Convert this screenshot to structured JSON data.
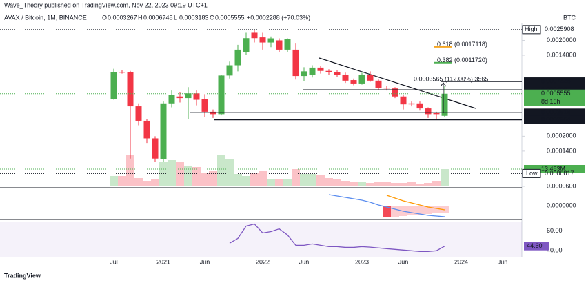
{
  "header": {
    "publisher": "Wave_Theory published on TradingView.com, Nov 22, 2023 09:19 UTC+1",
    "symbol": "AVAX / Bitcoin, 1M, BINANCE",
    "ohlc": [
      {
        "key": "O",
        "value": "0.0003267"
      },
      {
        "key": "H",
        "value": "0.0006748"
      },
      {
        "key": "L",
        "value": "0.0003183"
      },
      {
        "key": "C",
        "value": "0.0005555"
      }
    ],
    "change": "+0.0002288 (+70.03%)",
    "currency": "BTC"
  },
  "chart_data": [
    {
      "type": "candlestick",
      "scale": "log",
      "up_color": "#4caf50",
      "down_color": "#f23645",
      "categories": [
        "Jul",
        null,
        null,
        null,
        null,
        null,
        "2021",
        null,
        null,
        null,
        null,
        "Jun",
        null,
        null,
        null,
        null,
        null,
        null,
        "2022",
        null,
        null,
        null,
        null,
        "Jun",
        null,
        null,
        null,
        null,
        null,
        null,
        "2023",
        null,
        null,
        null,
        null,
        "Jun",
        null,
        null,
        null,
        null,
        null,
        null,
        "2024",
        null,
        null,
        null,
        null,
        "Jun"
      ],
      "open": [
        0.00049,
        0.00094,
        0.00093,
        0.00041,
        0.00029,
        0.00019,
        0.000115,
        0.00044,
        0.00052,
        0.0005,
        0.00056,
        0.00049,
        0.00036,
        0.00034,
        0.00086,
        0.0011,
        0.00152,
        0.0024,
        0.00215,
        0.0019,
        0.002,
        0.0016,
        0.0016,
        0.00085,
        0.00088,
        0.00104,
        0.00096,
        0.00094,
        0.00088,
        0.00077,
        0.00071,
        0.00088,
        0.00076,
        0.00064,
        0.00063,
        0.00052,
        0.00044,
        0.00044,
        0.00039,
        0.00035,
        0.0003267,
        null,
        null,
        null,
        null,
        null,
        null,
        null
      ],
      "high": [
        0.00101,
        0.00098,
        0.00096,
        0.00044,
        0.0003,
        0.0002,
        0.00046,
        0.0006,
        0.00058,
        0.00065,
        0.0006,
        0.00055,
        0.00038,
        0.00088,
        0.0012,
        0.0018,
        0.0024,
        0.0025908,
        0.0024,
        0.0022,
        0.0021,
        0.0021,
        0.00185,
        0.00105,
        0.0011,
        0.00108,
        0.001,
        0.00098,
        0.00092,
        0.0008,
        0.00092,
        0.00095,
        0.00078,
        0.00067,
        0.00065,
        0.00054,
        0.00046,
        0.00046,
        0.0004,
        0.00036,
        0.0006748,
        null,
        null,
        null,
        null,
        null,
        null,
        null
      ],
      "low": [
        0.00048,
        0.0009,
        0.000117,
        0.00026,
        0.00017,
        0.000108,
        0.000108,
        0.0004,
        0.00045,
        0.0003,
        0.00042,
        0.00032,
        0.00031,
        0.00033,
        0.0008,
        0.00095,
        0.0014,
        0.0019,
        0.0016,
        0.0017,
        0.0015,
        0.0015,
        0.00078,
        0.00075,
        0.00082,
        0.0009,
        0.00088,
        0.00083,
        0.00072,
        0.00068,
        0.00069,
        0.00074,
        0.00061,
        0.0006,
        0.0005,
        0.00038,
        0.00041,
        0.00037,
        0.00031,
        0.0003,
        0.0003183,
        null,
        null,
        null,
        null,
        null,
        null,
        null
      ],
      "close": [
        0.00093,
        0.00092,
        0.00041,
        0.00029,
        0.00019,
        0.000117,
        0.00044,
        0.00054,
        0.0005,
        0.00056,
        0.00048,
        0.00036,
        0.00034,
        0.00086,
        0.0011,
        0.0016,
        0.00211,
        0.00211,
        0.0019,
        0.0021,
        0.0016,
        0.00205,
        0.00085,
        0.00095,
        0.00104,
        0.00096,
        0.00093,
        0.00088,
        0.00076,
        0.00071,
        0.00088,
        0.00076,
        0.00064,
        0.00063,
        0.00052,
        0.00043,
        0.00043,
        0.00039,
        0.00034,
        0.00034,
        0.0005555,
        null,
        null,
        null,
        null,
        null,
        null,
        null
      ],
      "ylim": [
        6e-05,
        0.003
      ],
      "yticks": [
        {
          "value": 0.002,
          "label": "0.0020000"
        },
        {
          "value": 0.0014,
          "label": "0.0014000"
        },
        {
          "value": 0.0002,
          "label": "0.0002000"
        },
        {
          "value": 0.00014,
          "label": "0.0001400"
        },
        {
          "value": 6e-05,
          "label": "0.0000600"
        }
      ],
      "levels": [
        0.0007448,
        0.0006097,
        0.0003518,
        0.0002964
      ],
      "high_label": "High",
      "low_label": "Low",
      "all_time_low": 8.17e-05,
      "countdown": "8d 16h",
      "fib": [
        {
          "label": "0.618 (0.0017118)",
          "value": 0.0017118,
          "color": "#f5a623"
        },
        {
          "label": "0.382 (0.0011720)",
          "value": 0.001172,
          "color": "#4caf50"
        }
      ],
      "measure": "0.0003565 (112.00%) 3565",
      "volume": {
        "values": [
          8.08,
          8.08,
          24.23,
          6.46,
          4.31,
          5.39,
          18.85,
          20.46,
          18.85,
          16.16,
          15.08,
          10.77,
          11.85,
          24.23,
          21.54,
          9.69,
          8.08,
          10.77,
          11.85,
          5.39,
          5.39,
          5.39,
          13.46,
          9.69,
          9.69,
          8.62,
          6.46,
          5.39,
          4.31,
          3.23,
          3.23,
          2.69,
          3.23,
          3.23,
          2.69,
          2.69,
          3.23,
          2.15,
          2.69,
          4.31,
          13.463,
          null,
          null,
          null,
          null,
          null,
          null,
          null
        ],
        "value_labels": [
          null,
          null,
          null,
          null,
          null,
          null,
          null,
          null,
          null,
          null,
          null,
          null,
          null,
          null,
          null,
          null,
          null,
          null,
          null,
          null,
          null,
          null,
          null,
          null,
          null,
          null,
          null,
          null,
          null,
          null,
          null,
          null,
          null,
          null,
          null,
          null,
          null,
          null,
          null,
          null,
          "13.463M",
          null,
          null,
          null,
          null,
          null,
          null,
          null
        ]
      }
    },
    {
      "type": "macd",
      "ylim": [
        -0.00018,
        0.00016
      ],
      "yticks": [
        {
          "value": 0,
          "label": "0.0000000"
        }
      ],
      "macd": {
        "color": "#5b8def",
        "values": [
          null,
          null,
          null,
          null,
          null,
          null,
          null,
          null,
          null,
          null,
          null,
          null,
          null,
          null,
          null,
          null,
          null,
          null,
          null,
          null,
          null,
          null,
          null,
          null,
          null,
          null,
          0.00016,
          0.00014,
          0.00012,
          0.0001,
          8e-05,
          5e-05,
          1e-05,
          -2e-05,
          -5e-05,
          -8e-05,
          -0.0001,
          -0.00012,
          -0.00014,
          -0.00015,
          -0.00016,
          null,
          null,
          null,
          null,
          null,
          null,
          null
        ]
      },
      "signal": {
        "color": "#ff9800",
        "values": [
          null,
          null,
          null,
          null,
          null,
          null,
          null,
          null,
          null,
          null,
          null,
          null,
          null,
          null,
          null,
          null,
          null,
          null,
          null,
          null,
          null,
          null,
          null,
          null,
          null,
          null,
          null,
          null,
          null,
          null,
          null,
          null,
          null,
          0.00015,
          0.00011,
          7e-05,
          4e-05,
          1e-05,
          -2e-05,
          -4e-05,
          -6e-05,
          null,
          null,
          null,
          null,
          null,
          null,
          null
        ]
      },
      "histogram": {
        "color": "#f23645",
        "values": [
          null,
          null,
          null,
          null,
          null,
          null,
          null,
          null,
          null,
          null,
          null,
          null,
          null,
          null,
          null,
          null,
          null,
          null,
          null,
          null,
          null,
          null,
          null,
          null,
          null,
          null,
          null,
          null,
          null,
          null,
          null,
          null,
          null,
          -0.00017,
          -0.00016,
          -0.00015,
          -0.00014,
          -0.00013,
          -0.00012,
          -0.00011,
          -0.0001,
          null,
          null,
          null,
          null,
          null,
          null,
          null
        ]
      }
    },
    {
      "type": "line",
      "color": "#7e57c2",
      "ylim": [
        34,
        70
      ],
      "yticks": [
        {
          "value": 40,
          "label": "40.00"
        },
        {
          "value": 60,
          "label": "60.00"
        }
      ],
      "values": [
        null,
        null,
        null,
        null,
        null,
        null,
        null,
        null,
        null,
        null,
        null,
        null,
        null,
        null,
        47.6,
        52.4,
        64.8,
        66.9,
        57.9,
        59.3,
        62,
        55.9,
        45.5,
        45.5,
        46.9,
        45.5,
        44.1,
        44.1,
        43.4,
        43.4,
        44.1,
        43.6,
        42.8,
        42.1,
        41.4,
        40.7,
        40,
        39.3,
        39.3,
        40,
        44.6,
        null,
        null,
        null,
        null,
        null,
        null,
        null
      ],
      "value_labels": [
        null,
        null,
        null,
        null,
        null,
        null,
        null,
        null,
        null,
        null,
        null,
        null,
        null,
        null,
        null,
        null,
        null,
        null,
        null,
        null,
        null,
        null,
        null,
        null,
        null,
        null,
        null,
        null,
        null,
        null,
        null,
        null,
        null,
        null,
        null,
        null,
        null,
        null,
        null,
        null,
        "44.60",
        null,
        null,
        null,
        null,
        null,
        null,
        null
      ]
    }
  ],
  "footer": {
    "brand": "TradingView"
  }
}
